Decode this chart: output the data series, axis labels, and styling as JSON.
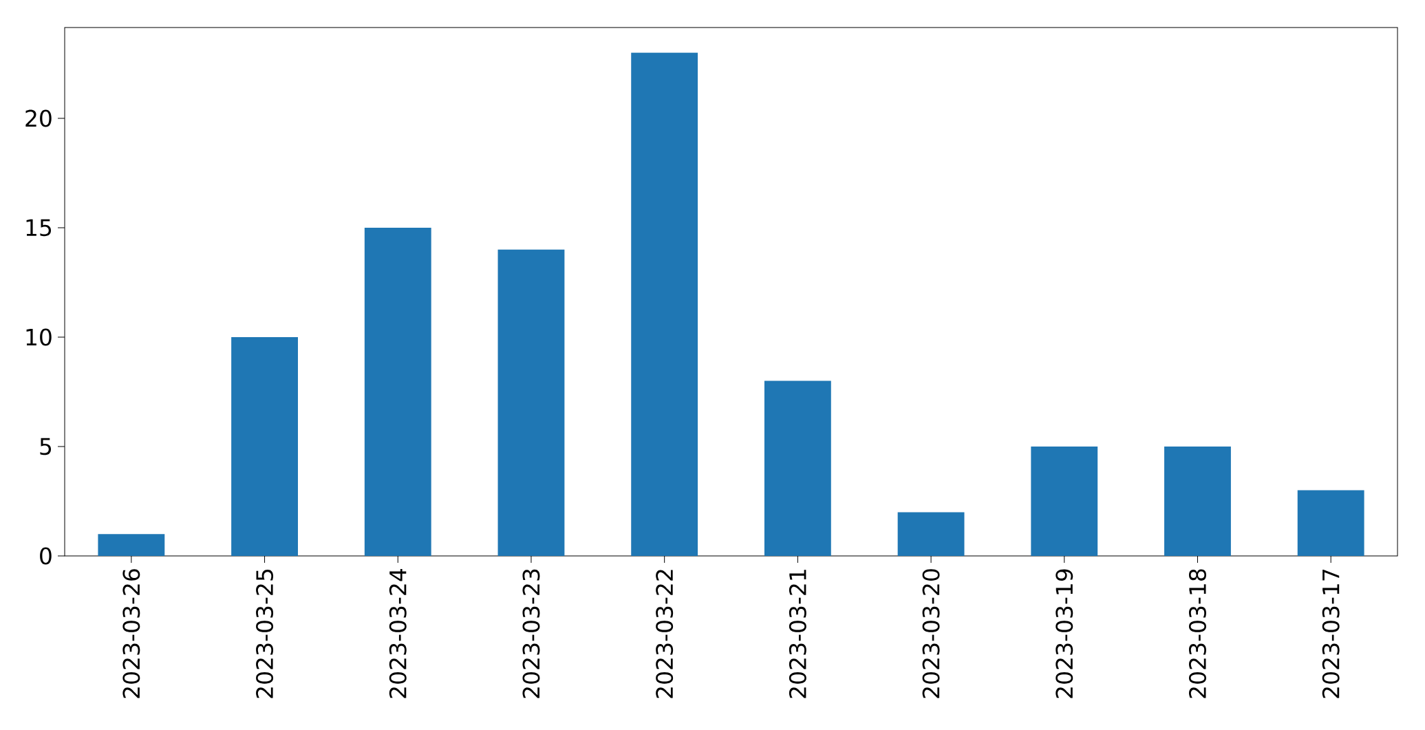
{
  "chart_data": {
    "type": "bar",
    "categories": [
      "2023-03-26",
      "2023-03-25",
      "2023-03-24",
      "2023-03-23",
      "2023-03-22",
      "2023-03-21",
      "2023-03-20",
      "2023-03-19",
      "2023-03-18",
      "2023-03-17"
    ],
    "values": [
      1,
      10,
      15,
      14,
      23,
      8,
      2,
      5,
      5,
      3
    ],
    "color": "#1f77b4",
    "ylim": [
      0,
      24.15
    ],
    "yticks": [
      0,
      5,
      10,
      15,
      20
    ],
    "grid": false
  }
}
